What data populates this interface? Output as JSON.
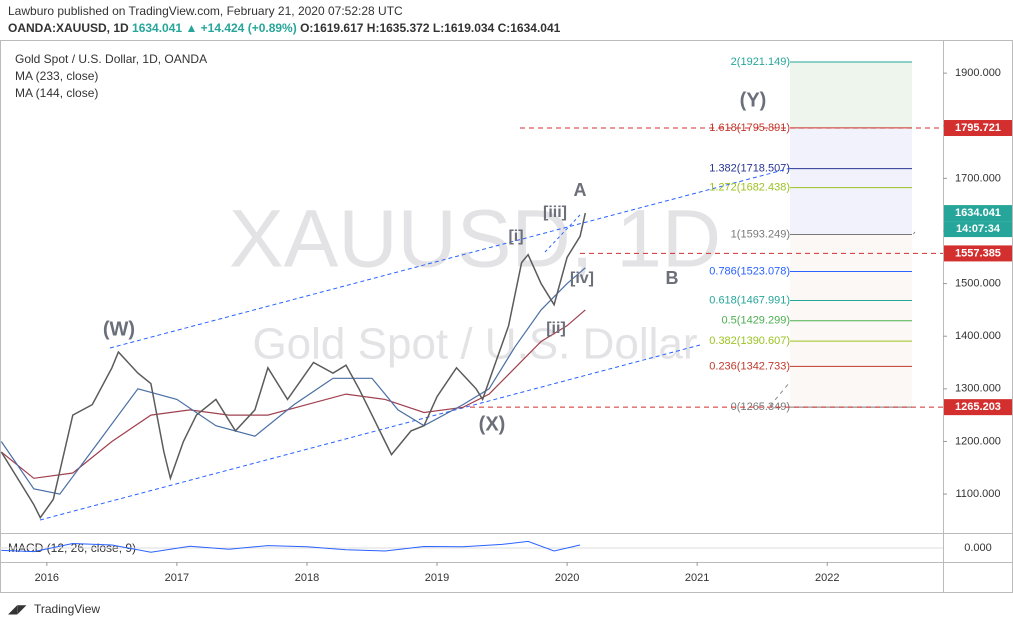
{
  "header": {
    "line1": "Lawburo published on TradingView.com, February 21, 2020 07:52:28 UTC",
    "symbol": "OANDA:XAUUSD, 1D",
    "last": "1634.041",
    "change": "▲ +14.424 (+0.89%)",
    "open": "O:1619.617",
    "high": "H:1635.372",
    "low": "L:1619.034",
    "close": "C:1634.041"
  },
  "footer": {
    "brand": "TradingView"
  },
  "chart_data": {
    "type": "line",
    "title": "Gold Spot / U.S. Dollar, 1D, OANDA",
    "watermark": "XAUUSD, 1D",
    "watermark_subtitle": "Gold Spot / U.S. Dollar",
    "xlim": [
      2015.64,
      2022.89
    ],
    "xticks": [
      2016,
      2017,
      2018,
      2019,
      2020,
      2021,
      2022
    ],
    "ylim": [
      1026,
      1963
    ],
    "yticks": [
      {
        "value": 1100,
        "label": "1100.000"
      },
      {
        "value": 1200,
        "label": "1200.000"
      },
      {
        "value": 1300,
        "label": "1300.000"
      },
      {
        "value": 1400,
        "label": "1400.000"
      },
      {
        "value": 1500,
        "label": "1500.000"
      },
      {
        "value": 1600,
        "label": "1600.000"
      },
      {
        "value": 1700,
        "label": "1700.000"
      },
      {
        "value": 1800,
        "label": "1800.000"
      },
      {
        "value": 1900,
        "label": "1900.000"
      }
    ],
    "series": [
      {
        "name": "XAUUSD",
        "color": "#5b5b5b",
        "x": [
          2015.65,
          2015.8,
          2015.9,
          2015.95,
          2016.05,
          2016.2,
          2016.35,
          2016.5,
          2016.55,
          2016.7,
          2016.8,
          2016.9,
          2016.95,
          2017.05,
          2017.15,
          2017.3,
          2017.45,
          2017.6,
          2017.7,
          2017.85,
          2018.05,
          2018.2,
          2018.3,
          2018.4,
          2018.5,
          2018.6,
          2018.65,
          2018.8,
          2018.9,
          2019.0,
          2019.15,
          2019.3,
          2019.35,
          2019.45,
          2019.55,
          2019.65,
          2019.7,
          2019.8,
          2019.9,
          2020.0,
          2020.1,
          2020.14
        ],
        "values": [
          1180,
          1120,
          1080,
          1055,
          1090,
          1250,
          1270,
          1340,
          1370,
          1330,
          1310,
          1180,
          1130,
          1200,
          1250,
          1280,
          1220,
          1260,
          1340,
          1280,
          1350,
          1330,
          1345,
          1300,
          1250,
          1200,
          1175,
          1220,
          1230,
          1285,
          1340,
          1300,
          1280,
          1350,
          1420,
          1540,
          1555,
          1500,
          1460,
          1550,
          1590,
          1634
        ]
      },
      {
        "name": "MA (144, close)",
        "color": "#4a6fa5",
        "x": [
          2015.65,
          2015.9,
          2016.1,
          2016.4,
          2016.7,
          2017.0,
          2017.3,
          2017.6,
          2017.9,
          2018.2,
          2018.5,
          2018.7,
          2018.9,
          2019.2,
          2019.4,
          2019.6,
          2019.8,
          2020.0,
          2020.14
        ],
        "values": [
          1200,
          1110,
          1100,
          1200,
          1300,
          1280,
          1230,
          1210,
          1270,
          1320,
          1320,
          1260,
          1230,
          1270,
          1300,
          1380,
          1450,
          1500,
          1530
        ]
      },
      {
        "name": "MA (233, close)",
        "color": "#a0404f",
        "x": [
          2015.65,
          2015.9,
          2016.2,
          2016.5,
          2016.8,
          2017.1,
          2017.4,
          2017.7,
          2018.0,
          2018.3,
          2018.6,
          2018.9,
          2019.2,
          2019.4,
          2019.6,
          2019.8,
          2020.0,
          2020.14
        ],
        "values": [
          1180,
          1130,
          1140,
          1200,
          1250,
          1260,
          1250,
          1250,
          1270,
          1290,
          1280,
          1255,
          1265,
          1290,
          1340,
          1390,
          1420,
          1450
        ]
      }
    ],
    "fib_levels": [
      {
        "label": "2(1921.149)",
        "value": 1921.149,
        "color": "#26a69a"
      },
      {
        "label": "1.618(1795.891)",
        "value": 1795.891,
        "color": "#c0392b"
      },
      {
        "label": "1.382(1718.507)",
        "value": 1718.507,
        "color": "#283593"
      },
      {
        "label": "1.272(1682.438)",
        "value": 1682.438,
        "color": "#9cc221"
      },
      {
        "label": "1(1593.249)",
        "value": 1593.249,
        "color": "#7a7a7a"
      },
      {
        "label": "0.786(1523.078)",
        "value": 1523.078,
        "color": "#2962ff"
      },
      {
        "label": "0.618(1467.991)",
        "value": 1467.991,
        "color": "#26a69a"
      },
      {
        "label": "0.5(1429.299)",
        "value": 1429.299,
        "color": "#4caf50"
      },
      {
        "label": "0.382(1390.607)",
        "value": 1390.607,
        "color": "#9cc221"
      },
      {
        "label": "0.236(1342.733)",
        "value": 1342.733,
        "color": "#c0392b"
      },
      {
        "label": "0(1265.349)",
        "value": 1265.349,
        "color": "#7a7a7a"
      }
    ],
    "price_tags": [
      {
        "value": 1795.721,
        "label": "1795.721",
        "color": "#d32f2f"
      },
      {
        "value": 1634.041,
        "label": "1634.041",
        "color": "#26a69a"
      },
      {
        "value": 1557.385,
        "label": "1557.385",
        "color": "#d32f2f"
      },
      {
        "value": 1265.203,
        "label": "1265.203",
        "color": "#d32f2f"
      }
    ],
    "countdown": "14:07:34",
    "annotations": [
      "(Y)",
      "A",
      "[iii]",
      "[i]",
      "B",
      "[iv]",
      "[ii]",
      "(W)",
      "(X)"
    ],
    "macd": {
      "name": "MACD (12, 26, close, 9)",
      "ylim": [
        -40,
        40
      ],
      "yticks": [
        {
          "value": 0,
          "label": "0.000"
        }
      ],
      "x": [
        2015.65,
        2015.9,
        2016.2,
        2016.5,
        2016.8,
        2017.1,
        2017.4,
        2017.7,
        2018.0,
        2018.3,
        2018.6,
        2018.9,
        2019.2,
        2019.5,
        2019.7,
        2019.9,
        2020.1
      ],
      "values": [
        -8,
        -12,
        15,
        10,
        -14,
        6,
        -4,
        8,
        4,
        -6,
        -10,
        5,
        4,
        12,
        22,
        -10,
        10
      ]
    }
  }
}
